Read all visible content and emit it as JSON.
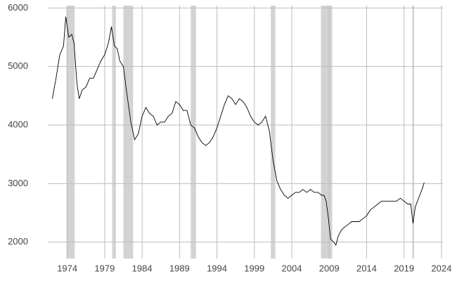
{
  "chart_data": {
    "type": "line",
    "x": [
      1972.0,
      1972.5,
      1973.0,
      1973.5,
      1973.8,
      1974.2,
      1974.6,
      1974.9,
      1975.3,
      1975.6,
      1976.0,
      1976.5,
      1977.0,
      1977.5,
      1978.0,
      1978.5,
      1979.0,
      1979.5,
      1979.9,
      1980.3,
      1980.7,
      1981.0,
      1981.5,
      1982.0,
      1982.5,
      1983.0,
      1983.5,
      1984.0,
      1984.5,
      1985.0,
      1985.5,
      1986.0,
      1986.5,
      1987.0,
      1987.5,
      1988.0,
      1988.5,
      1989.0,
      1989.5,
      1990.0,
      1990.5,
      1991.0,
      1991.5,
      1992.0,
      1992.5,
      1993.0,
      1993.5,
      1994.0,
      1994.5,
      1995.0,
      1995.5,
      1996.0,
      1996.5,
      1997.0,
      1997.5,
      1998.0,
      1998.5,
      1999.0,
      1999.5,
      2000.0,
      2000.5,
      2001.0,
      2001.5,
      2002.0,
      2002.5,
      2003.0,
      2003.5,
      2004.0,
      2004.5,
      2005.0,
      2005.5,
      2006.0,
      2006.5,
      2007.0,
      2007.5,
      2008.0,
      2008.3,
      2008.6,
      2008.9,
      2009.2,
      2009.6,
      2009.9,
      2010.2,
      2010.6,
      2011.0,
      2011.5,
      2012.0,
      2012.5,
      2013.0,
      2013.5,
      2014.0,
      2014.5,
      2015.0,
      2015.5,
      2016.0,
      2016.5,
      2017.0,
      2017.5,
      2018.0,
      2018.5,
      2019.0,
      2019.5,
      2019.9,
      2020.2,
      2020.5,
      2020.8,
      2021.1,
      2021.4,
      2021.7
    ],
    "values": [
      4450,
      4800,
      5200,
      5350,
      5850,
      5500,
      5550,
      5400,
      4700,
      4450,
      4600,
      4650,
      4800,
      4800,
      4950,
      5100,
      5200,
      5400,
      5680,
      5350,
      5300,
      5100,
      5000,
      4500,
      4050,
      3750,
      3850,
      4150,
      4300,
      4200,
      4150,
      4000,
      4050,
      4050,
      4150,
      4200,
      4400,
      4350,
      4250,
      4250,
      4000,
      3950,
      3800,
      3700,
      3650,
      3700,
      3800,
      3950,
      4150,
      4350,
      4500,
      4450,
      4350,
      4450,
      4400,
      4300,
      4150,
      4050,
      4000,
      4050,
      4150,
      3900,
      3400,
      3050,
      2900,
      2800,
      2750,
      2800,
      2850,
      2850,
      2900,
      2850,
      2900,
      2850,
      2850,
      2800,
      2800,
      2700,
      2400,
      2050,
      2000,
      1950,
      2100,
      2200,
      2250,
      2300,
      2350,
      2350,
      2350,
      2400,
      2450,
      2550,
      2600,
      2650,
      2700,
      2700,
      2700,
      2700,
      2700,
      2750,
      2700,
      2650,
      2650,
      2320,
      2600,
      2700,
      2800,
      2900,
      3020
    ],
    "color": "#000000",
    "shaded_regions": [
      [
        1973.9,
        1975.0
      ],
      [
        1980.0,
        1980.5
      ],
      [
        1981.5,
        1982.8
      ],
      [
        1990.5,
        1991.2
      ],
      [
        2001.2,
        2001.8
      ],
      [
        2007.9,
        2009.4
      ],
      [
        2020.1,
        2020.35
      ]
    ],
    "shade_color": "#d3d3d3",
    "xlim": [
      1971.4,
      2024.2
    ],
    "ylim": [
      1720,
      6040
    ],
    "xticks": [
      1974,
      1979,
      1984,
      1989,
      1994,
      1999,
      2004,
      2009,
      2014,
      2019,
      2024
    ],
    "yticks": [
      2000,
      3000,
      4000,
      5000,
      6000
    ],
    "grid": true
  }
}
